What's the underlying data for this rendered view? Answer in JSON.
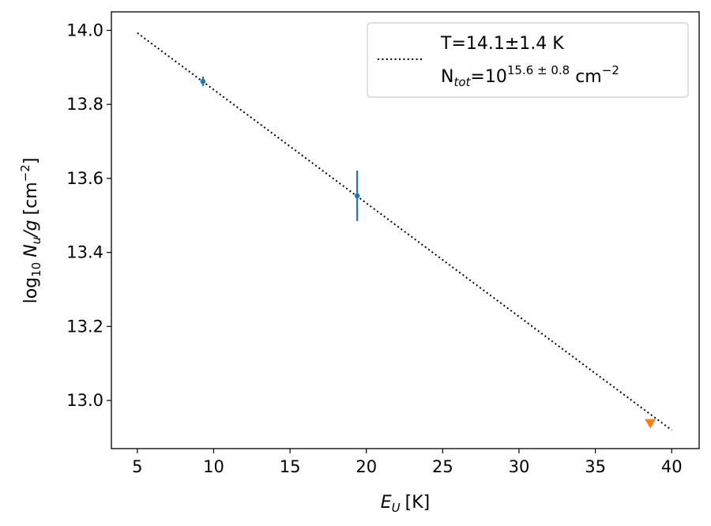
{
  "chart_data": {
    "type": "scatter",
    "xlabel": "E",
    "xlabel_sub": "U",
    "xlabel_unit": "[K]",
    "ylabel_prefix": "log",
    "ylabel_prefix_sub": "10",
    "ylabel_var": "N",
    "ylabel_var_sub": "u",
    "ylabel_slash": "/g",
    "ylabel_unit": "[cm",
    "ylabel_unit_sup": "−2",
    "ylabel_unit_close": "]",
    "xlim": [
      3.3,
      41.8
    ],
    "ylim": [
      12.87,
      14.05
    ],
    "xticks": [
      5,
      10,
      15,
      20,
      25,
      30,
      35,
      40
    ],
    "yticks": [
      13.0,
      13.2,
      13.4,
      13.6,
      13.8,
      14.0
    ],
    "ytick_labels": [
      "13.0",
      "13.2",
      "13.4",
      "13.6",
      "13.8",
      "14.0"
    ],
    "grid": false,
    "legend_placement": "top-right",
    "legend": {
      "line1": "T=14.1±1.4 K",
      "line2_prefix": "N",
      "line2_sub": "tot",
      "line2_eq": "=10",
      "line2_sup": "15.6 ± 0.8",
      "line2_unit": " cm",
      "line2_unit_sup": "−2"
    },
    "fit_line": {
      "style": "dotted",
      "color": "#000000",
      "x": [
        5,
        40
      ],
      "y": [
        13.993,
        12.92
      ]
    },
    "series": [
      {
        "marker": "circle",
        "color": "#1f77b4",
        "points": [
          {
            "x": 9.3,
            "y": 13.862,
            "yerr": 0.013
          },
          {
            "x": 19.4,
            "y": 13.553,
            "yerr": 0.068
          }
        ]
      },
      {
        "marker": "triangle-down",
        "color": "#ff7f0e",
        "points": [
          {
            "x": 38.6,
            "y": 12.937
          }
        ]
      }
    ]
  }
}
